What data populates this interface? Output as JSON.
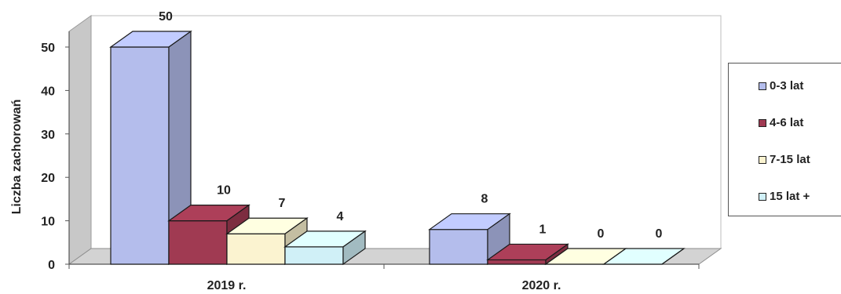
{
  "chart_data": {
    "type": "bar",
    "ylabel": "Liczba zachorowań",
    "xlabel": "",
    "categories": [
      "2019 r.",
      "2020 r."
    ],
    "ylim": [
      0,
      50
    ],
    "yticks": [
      0,
      10,
      20,
      30,
      40,
      50
    ],
    "series": [
      {
        "name": "0-3 lat",
        "values": [
          50,
          8
        ],
        "color": "#b4bdec"
      },
      {
        "name": "4-6 lat",
        "values": [
          10,
          1
        ],
        "color": "#a03a52"
      },
      {
        "name": "7-15 lat",
        "values": [
          7,
          0
        ],
        "color": "#fbf3d0"
      },
      {
        "name": "15 lat +",
        "values": [
          4,
          0
        ],
        "color": "#d0f0f7"
      }
    ],
    "legend_position": "right",
    "grid": false,
    "style": "3d"
  }
}
